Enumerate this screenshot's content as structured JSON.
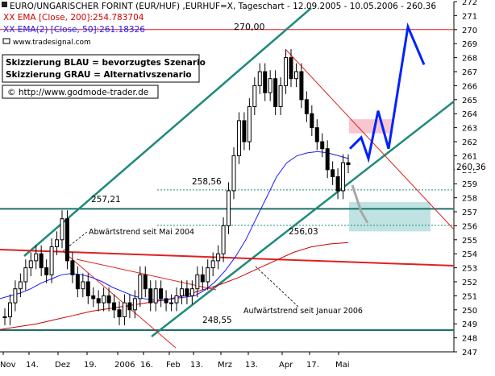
{
  "header": {
    "title_line": "EURO/UNGARISCHER FORINT (EUR/HUF) ,EURHUF=X, Tageschart - 12.09.2005 - 10.05.2006 - 260.36",
    "ema200_line": "XX EMA [Close, 200]:254.783704",
    "ema50_line": "XX EMA(2) [Close, 50]:261.18326",
    "source": "www.tradesignal.com"
  },
  "legend_box": {
    "line1": "Skizzierung BLAU = bevorzugtes Szenario",
    "line2": "Skizzierung GRAU = Alternativszenario"
  },
  "website_box": {
    "text": "© http://www.godmode-trader.de"
  },
  "colors": {
    "price": "#000000",
    "ema50": "#1a1aff",
    "ema200": "#cc0000",
    "channel": "#1e8a7a",
    "resistance_line": "#e02020",
    "scenario_blue": "#0022ff",
    "scenario_grey": "#a8a8a8",
    "pink_zone": "#f7c6cf",
    "teal_zone": "#bfe3e2",
    "horizontal_support": "#1e6f6a"
  },
  "chart_data": {
    "type": "candlestick",
    "title": "EURO/UNGARISCHER FORINT (EUR/HUF) ,EURHUF=X, Tageschart - 12.09.2005 - 10.05.2006 - 260.36",
    "y_axis": {
      "side": "right",
      "min": 247,
      "max": 272,
      "ticks": [
        247,
        248,
        249,
        250,
        251,
        252,
        253,
        254,
        255,
        256,
        257,
        258,
        259,
        260,
        261,
        262,
        263,
        264,
        265,
        266,
        267,
        268,
        269,
        270,
        271,
        272
      ]
    },
    "x_axis_labels": [
      "Nov",
      "14.",
      "Dez",
      "19.",
      "2006",
      "16.",
      "Feb",
      "13.",
      "Mrz",
      "13.",
      "Apr",
      "17.",
      "Mai"
    ],
    "last_price_label": "260,36",
    "close_series": [
      249.5,
      250.5,
      251.5,
      252.0,
      253.0,
      253.5,
      254.0,
      253.0,
      252.5,
      254.5,
      255.0,
      256.5,
      253.5,
      252.5,
      251.5,
      252.0,
      251.0,
      250.8,
      250.5,
      251.0,
      250.5,
      250.0,
      249.5,
      250.5,
      250.0,
      250.8,
      252.5,
      251.5,
      250.5,
      251.5,
      250.8,
      250.5,
      250.5,
      251.0,
      251.5,
      251.0,
      251.5,
      252.5,
      252.0,
      253.0,
      253.5,
      254.0,
      256.0,
      258.5,
      261.0,
      263.5,
      262.0,
      264.5,
      266.0,
      267.0,
      265.5,
      266.5,
      264.5,
      266.0,
      268.0,
      266.5,
      267.0,
      265.0,
      264.0,
      263.0,
      262.0,
      261.5,
      260.0,
      259.5,
      258.5,
      260.5,
      260.36
    ],
    "ema50_series": [
      250.8,
      251.0,
      251.2,
      251.5,
      251.9,
      252.2,
      252.5,
      252.6,
      252.5,
      252.3,
      252.0,
      251.6,
      251.3,
      251.0,
      250.8,
      250.7,
      250.7,
      250.8,
      250.9,
      251.0,
      251.4,
      252.0,
      252.8,
      253.8,
      255.0,
      256.5,
      258.0,
      259.5,
      260.5,
      261.0,
      261.2,
      261.3,
      261.2,
      261.0,
      260.8
    ],
    "ema200_series": [
      248.6,
      248.8,
      249.0,
      249.3,
      249.6,
      249.9,
      250.1,
      250.3,
      250.5,
      250.7,
      251.0,
      251.4,
      251.8,
      252.3,
      252.9,
      253.5,
      254.1,
      254.5,
      254.7,
      254.8
    ],
    "annotations": {
      "level_270": "270,00",
      "level_258": "258,56",
      "level_257": "257,21",
      "level_256": "256,03",
      "level_248": "248,55",
      "downtrend_label": "Abwärtstrend seit Mai 2004",
      "uptrend_label": "Aufwärtstrend seit Januar 2006"
    },
    "levels": {
      "resistance_top": 270.0,
      "dotted_1": 258.56,
      "support_1": 257.21,
      "dotted_2": 256.03,
      "support_bottom": 248.55
    },
    "scenario_blue_path": [
      261.5,
      262.3,
      260.8,
      264.2,
      261.5,
      270.2,
      267.5
    ],
    "scenario_grey_path": [
      258.9,
      257.0,
      256.2
    ],
    "zones": {
      "pink": [
        262.6,
        263.6
      ],
      "teal": [
        255.6,
        257.7
      ]
    }
  }
}
